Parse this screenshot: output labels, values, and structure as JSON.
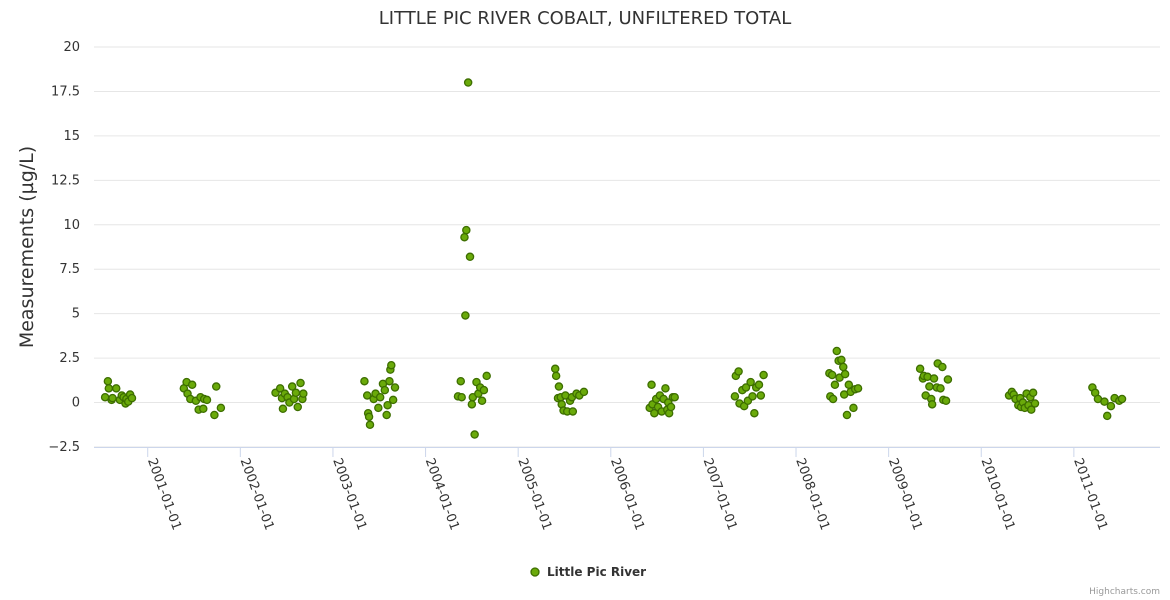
{
  "chart_data": {
    "type": "scatter",
    "title": "LITTLE PIC RIVER COBALT, UNFILTERED TOTAL",
    "xlabel": "",
    "ylabel": "Measurements (µg/L)",
    "ylim": [
      -2.5,
      20
    ],
    "yticks": [
      "−2.5",
      "0",
      "2.5",
      "5",
      "7.5",
      "10",
      "12.5",
      "15",
      "17.5",
      "20"
    ],
    "ytick_values": [
      -2.5,
      0,
      2.5,
      5,
      7.5,
      10,
      12.5,
      15,
      17.5,
      20
    ],
    "xlim": [
      2000.42,
      2011.93
    ],
    "xticks": [
      "2001-01-01",
      "2002-01-01",
      "2003-01-01",
      "2004-01-01",
      "2005-01-01",
      "2006-01-01",
      "2007-01-01",
      "2008-01-01",
      "2009-01-01",
      "2010-01-01",
      "2011-01-01"
    ],
    "xtick_values": [
      2001,
      2002,
      2003,
      2004,
      2005,
      2006,
      2007,
      2008,
      2009,
      2010,
      2011
    ],
    "legend_position": "bottom-center",
    "series": [
      {
        "name": "Little Pic River",
        "color": "#6aaa0a",
        "stroke": "#3d6e00",
        "points": [
          [
            2000.54,
            0.3
          ],
          [
            2000.57,
            1.2
          ],
          [
            2000.58,
            0.8
          ],
          [
            2000.61,
            0.15
          ],
          [
            2000.62,
            0.25
          ],
          [
            2000.66,
            0.8
          ],
          [
            2000.7,
            0.15
          ],
          [
            2000.72,
            0.4
          ],
          [
            2000.74,
            0.3
          ],
          [
            2000.76,
            -0.05
          ],
          [
            2000.77,
            0.2
          ],
          [
            2000.79,
            0.05
          ],
          [
            2000.81,
            0.45
          ],
          [
            2000.83,
            0.25
          ],
          [
            2001.39,
            0.8
          ],
          [
            2001.42,
            1.15
          ],
          [
            2001.43,
            0.5
          ],
          [
            2001.46,
            0.2
          ],
          [
            2001.48,
            1.0
          ],
          [
            2001.52,
            0.1
          ],
          [
            2001.55,
            -0.4
          ],
          [
            2001.57,
            0.3
          ],
          [
            2001.6,
            -0.35
          ],
          [
            2001.61,
            0.2
          ],
          [
            2001.64,
            0.15
          ],
          [
            2001.72,
            -0.7
          ],
          [
            2001.74,
            0.9
          ],
          [
            2001.79,
            -0.3
          ],
          [
            2002.38,
            0.55
          ],
          [
            2002.43,
            0.8
          ],
          [
            2002.45,
            0.25
          ],
          [
            2002.46,
            -0.35
          ],
          [
            2002.48,
            0.5
          ],
          [
            2002.51,
            0.3
          ],
          [
            2002.53,
            0.0
          ],
          [
            2002.56,
            0.9
          ],
          [
            2002.58,
            0.2
          ],
          [
            2002.6,
            0.55
          ],
          [
            2002.62,
            -0.25
          ],
          [
            2002.65,
            1.1
          ],
          [
            2002.67,
            0.2
          ],
          [
            2002.68,
            0.5
          ],
          [
            2003.34,
            1.2
          ],
          [
            2003.37,
            0.4
          ],
          [
            2003.38,
            -0.6
          ],
          [
            2003.39,
            -0.8
          ],
          [
            2003.4,
            -1.25
          ],
          [
            2003.44,
            0.2
          ],
          [
            2003.46,
            0.5
          ],
          [
            2003.49,
            -0.3
          ],
          [
            2003.51,
            0.3
          ],
          [
            2003.54,
            1.05
          ],
          [
            2003.56,
            0.7
          ],
          [
            2003.58,
            -0.7
          ],
          [
            2003.59,
            -0.15
          ],
          [
            2003.61,
            1.2
          ],
          [
            2003.62,
            1.85
          ],
          [
            2003.63,
            2.1
          ],
          [
            2003.65,
            0.15
          ],
          [
            2003.67,
            0.85
          ],
          [
            2004.35,
            0.35
          ],
          [
            2004.38,
            1.2
          ],
          [
            2004.39,
            0.3
          ],
          [
            2004.42,
            9.3
          ],
          [
            2004.43,
            4.9
          ],
          [
            2004.44,
            9.7
          ],
          [
            2004.46,
            18.0
          ],
          [
            2004.48,
            8.2
          ],
          [
            2004.5,
            -0.1
          ],
          [
            2004.51,
            0.3
          ],
          [
            2004.53,
            -1.8
          ],
          [
            2004.55,
            1.15
          ],
          [
            2004.57,
            0.5
          ],
          [
            2004.59,
            0.85
          ],
          [
            2004.61,
            0.1
          ],
          [
            2004.63,
            0.7
          ],
          [
            2004.66,
            1.5
          ],
          [
            2005.4,
            1.9
          ],
          [
            2005.41,
            1.5
          ],
          [
            2005.43,
            0.25
          ],
          [
            2005.44,
            0.9
          ],
          [
            2005.46,
            0.3
          ],
          [
            2005.47,
            -0.1
          ],
          [
            2005.49,
            -0.45
          ],
          [
            2005.51,
            0.4
          ],
          [
            2005.53,
            -0.5
          ],
          [
            2005.56,
            0.1
          ],
          [
            2005.58,
            0.3
          ],
          [
            2005.59,
            -0.5
          ],
          [
            2005.63,
            0.5
          ],
          [
            2005.66,
            0.4
          ],
          [
            2005.71,
            0.6
          ],
          [
            2006.42,
            -0.3
          ],
          [
            2006.44,
            1.0
          ],
          [
            2006.45,
            -0.1
          ],
          [
            2006.47,
            -0.6
          ],
          [
            2006.49,
            0.2
          ],
          [
            2006.51,
            -0.25
          ],
          [
            2006.53,
            0.4
          ],
          [
            2006.55,
            -0.5
          ],
          [
            2006.57,
            0.2
          ],
          [
            2006.59,
            0.8
          ],
          [
            2006.61,
            -0.4
          ],
          [
            2006.62,
            0.0
          ],
          [
            2006.63,
            -0.6
          ],
          [
            2006.65,
            -0.25
          ],
          [
            2006.67,
            0.3
          ],
          [
            2006.69,
            0.3
          ],
          [
            2007.34,
            0.35
          ],
          [
            2007.35,
            1.5
          ],
          [
            2007.38,
            1.75
          ],
          [
            2007.39,
            -0.05
          ],
          [
            2007.42,
            0.7
          ],
          [
            2007.44,
            -0.2
          ],
          [
            2007.46,
            0.85
          ],
          [
            2007.48,
            0.1
          ],
          [
            2007.51,
            1.15
          ],
          [
            2007.53,
            0.35
          ],
          [
            2007.55,
            -0.6
          ],
          [
            2007.57,
            0.85
          ],
          [
            2007.6,
            1.0
          ],
          [
            2007.62,
            0.4
          ],
          [
            2007.65,
            1.55
          ],
          [
            2008.36,
            1.65
          ],
          [
            2008.37,
            0.35
          ],
          [
            2008.39,
            1.55
          ],
          [
            2008.4,
            0.2
          ],
          [
            2008.42,
            1.0
          ],
          [
            2008.44,
            2.9
          ],
          [
            2008.46,
            2.35
          ],
          [
            2008.47,
            1.4
          ],
          [
            2008.49,
            2.4
          ],
          [
            2008.51,
            2.0
          ],
          [
            2008.52,
            0.45
          ],
          [
            2008.53,
            1.6
          ],
          [
            2008.55,
            -0.7
          ],
          [
            2008.57,
            1.0
          ],
          [
            2008.59,
            0.6
          ],
          [
            2008.62,
            -0.3
          ],
          [
            2008.64,
            0.75
          ],
          [
            2008.67,
            0.8
          ],
          [
            2009.34,
            1.9
          ],
          [
            2009.37,
            1.35
          ],
          [
            2009.38,
            1.5
          ],
          [
            2009.4,
            0.4
          ],
          [
            2009.42,
            1.45
          ],
          [
            2009.44,
            0.9
          ],
          [
            2009.46,
            0.2
          ],
          [
            2009.47,
            -0.1
          ],
          [
            2009.49,
            1.35
          ],
          [
            2009.52,
            0.85
          ],
          [
            2009.53,
            2.2
          ],
          [
            2009.56,
            0.8
          ],
          [
            2009.58,
            2.0
          ],
          [
            2009.59,
            0.15
          ],
          [
            2009.62,
            0.1
          ],
          [
            2009.64,
            1.3
          ],
          [
            2010.3,
            0.4
          ],
          [
            2010.33,
            0.6
          ],
          [
            2010.35,
            0.45
          ],
          [
            2010.37,
            0.2
          ],
          [
            2010.4,
            -0.15
          ],
          [
            2010.42,
            0.25
          ],
          [
            2010.43,
            -0.25
          ],
          [
            2010.45,
            0.0
          ],
          [
            2010.47,
            -0.3
          ],
          [
            2010.49,
            0.5
          ],
          [
            2010.51,
            -0.15
          ],
          [
            2010.53,
            0.3
          ],
          [
            2010.54,
            -0.4
          ],
          [
            2010.56,
            0.55
          ],
          [
            2010.58,
            -0.05
          ],
          [
            2011.2,
            0.85
          ],
          [
            2011.23,
            0.55
          ],
          [
            2011.26,
            0.2
          ],
          [
            2011.33,
            0.05
          ],
          [
            2011.36,
            -0.75
          ],
          [
            2011.4,
            -0.2
          ],
          [
            2011.44,
            0.25
          ],
          [
            2011.49,
            0.1
          ],
          [
            2011.52,
            0.2
          ]
        ]
      }
    ]
  },
  "credits": "Highcharts.com"
}
